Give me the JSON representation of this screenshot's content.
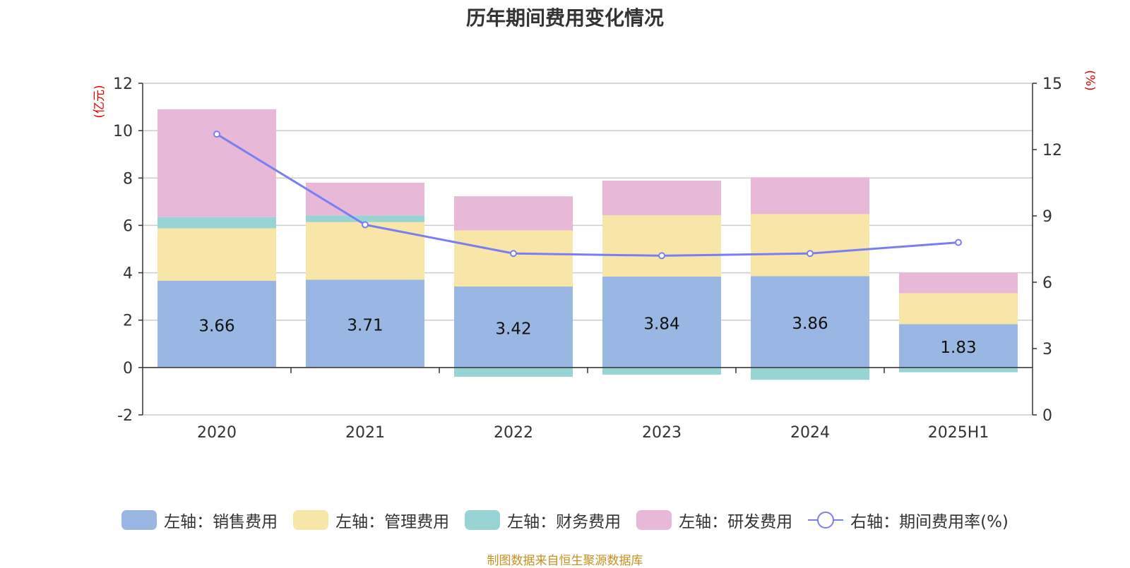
{
  "chart_data": {
    "type": "bar",
    "stacked": true,
    "title": "历年期间费用变化情况",
    "categories": [
      "2020",
      "2021",
      "2022",
      "2023",
      "2024",
      "2025H1"
    ],
    "left_axis": {
      "unit": "(亿元)",
      "ylim": [
        -2,
        12
      ],
      "ticks": [
        "-2",
        "0",
        "2",
        "4",
        "6",
        "8",
        "10",
        "12"
      ]
    },
    "right_axis": {
      "unit": "(%)",
      "ylim": [
        0,
        15
      ],
      "ticks": [
        "0",
        "3",
        "6",
        "9",
        "12",
        "15"
      ]
    },
    "series": [
      {
        "name": "左轴：销售费用",
        "axis": "left",
        "color": "#9ab6e2",
        "values": [
          3.66,
          3.71,
          3.42,
          3.84,
          3.86,
          1.83
        ],
        "show_labels": true
      },
      {
        "name": "左轴：管理费用",
        "axis": "left",
        "color": "#f8e6a8",
        "values": [
          2.22,
          2.43,
          2.37,
          2.59,
          2.62,
          1.31
        ]
      },
      {
        "name": "左轴：财务费用",
        "axis": "left",
        "color": "#98d4d4",
        "values": [
          0.47,
          0.28,
          -0.39,
          -0.3,
          -0.52,
          -0.2
        ]
      },
      {
        "name": "左轴：研发费用",
        "axis": "left",
        "color": "#e8b8d8",
        "values": [
          4.55,
          1.38,
          1.44,
          1.46,
          1.55,
          0.86
        ]
      },
      {
        "name": "右轴：期间费用率(%)",
        "axis": "right",
        "type": "line",
        "color": "#7a7ff0",
        "values": [
          12.7,
          8.6,
          7.3,
          7.2,
          7.3,
          7.8
        ]
      }
    ],
    "grid": true,
    "legend_position": "bottom"
  },
  "source": "制图数据来自恒生聚源数据库"
}
